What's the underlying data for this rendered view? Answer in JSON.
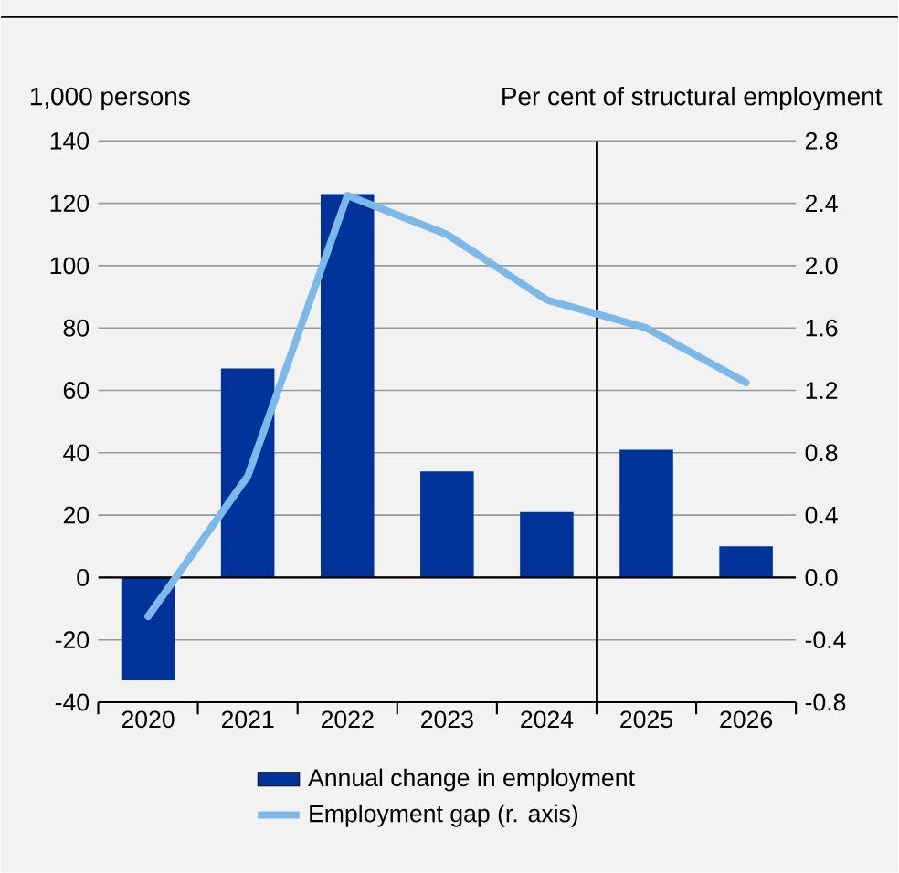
{
  "chart_data": {
    "type": "bar",
    "ylabel": "1,000 persons",
    "y2label": "Per cent of structural employment",
    "categories": [
      "2020",
      "2021",
      "2022",
      "2023",
      "2024",
      "2025",
      "2026"
    ],
    "series": [
      {
        "name": "Annual change in employment",
        "color": "#00339a",
        "values": [
          -33,
          67,
          123,
          34,
          21,
          41,
          10
        ]
      },
      {
        "name": "Employment gap (r. axis)",
        "type": "line",
        "axis": "y2",
        "color": "#7cb9e8",
        "values": [
          -0.25,
          0.65,
          2.45,
          2.2,
          1.78,
          1.6,
          1.25
        ]
      }
    ],
    "ylim": [
      -40,
      140
    ],
    "yticks": [
      -40,
      -20,
      0,
      20,
      40,
      60,
      80,
      100,
      120,
      140
    ],
    "y2lim": [
      -0.8,
      2.8
    ],
    "y2ticks": [
      {
        "value": -0.8,
        "label": "-0.8"
      },
      {
        "value": -0.4,
        "label": "-0.4"
      },
      {
        "value": 0,
        "label": "0.0"
      },
      {
        "value": 0.4,
        "label": "0.4"
      },
      {
        "value": 0.8,
        "label": "0.8"
      },
      {
        "value": 1.2,
        "label": "1.2"
      },
      {
        "value": 1.6,
        "label": "1.6"
      },
      {
        "value": 2.0,
        "label": "2.0"
      },
      {
        "value": 2.4,
        "label": "2.4"
      },
      {
        "value": 2.8,
        "label": "2.8"
      }
    ],
    "grid": "y",
    "legend": "bottom"
  }
}
